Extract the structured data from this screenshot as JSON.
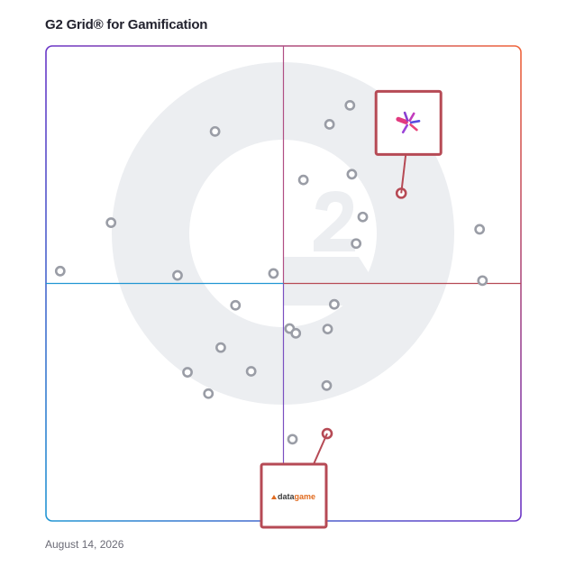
{
  "title": "G2 Grid® for Gamification",
  "date": "August 14, 2026",
  "colors": {
    "gradient_left": "#2196d3",
    "gradient_mid": "#6a35c7",
    "gradient_right": "#f0643a",
    "divider_top": "#b04e84",
    "divider_bottom": "#7a4fc1",
    "point": "#9a9da6",
    "highlight": "#b64a55",
    "watermark": "#eceef1"
  },
  "chart_data": {
    "type": "scatter",
    "title": "G2 Grid® for Gamification",
    "xlabel": "",
    "ylabel": "",
    "xlim": [
      0,
      1
    ],
    "ylim": [
      0,
      1
    ],
    "quadrant_split": {
      "x": 0.5,
      "y": 0.5
    },
    "grid": false,
    "legend": "none",
    "points": [
      {
        "x": 0.64,
        "y": 0.875,
        "highlight": false
      },
      {
        "x": 0.597,
        "y": 0.835,
        "highlight": false
      },
      {
        "x": 0.356,
        "y": 0.82,
        "highlight": false
      },
      {
        "x": 0.644,
        "y": 0.73,
        "highlight": false
      },
      {
        "x": 0.542,
        "y": 0.718,
        "highlight": false
      },
      {
        "x": 0.667,
        "y": 0.64,
        "highlight": false
      },
      {
        "x": 0.137,
        "y": 0.628,
        "highlight": false
      },
      {
        "x": 0.653,
        "y": 0.584,
        "highlight": false
      },
      {
        "x": 0.913,
        "y": 0.614,
        "highlight": false
      },
      {
        "x": 0.03,
        "y": 0.526,
        "highlight": false
      },
      {
        "x": 0.277,
        "y": 0.517,
        "highlight": false
      },
      {
        "x": 0.479,
        "y": 0.521,
        "highlight": false
      },
      {
        "x": 0.919,
        "y": 0.506,
        "highlight": false
      },
      {
        "x": 0.399,
        "y": 0.454,
        "highlight": false
      },
      {
        "x": 0.607,
        "y": 0.456,
        "highlight": false
      },
      {
        "x": 0.513,
        "y": 0.405,
        "highlight": false
      },
      {
        "x": 0.526,
        "y": 0.395,
        "highlight": false
      },
      {
        "x": 0.593,
        "y": 0.404,
        "highlight": false
      },
      {
        "x": 0.368,
        "y": 0.365,
        "highlight": false
      },
      {
        "x": 0.432,
        "y": 0.315,
        "highlight": false
      },
      {
        "x": 0.298,
        "y": 0.313,
        "highlight": false
      },
      {
        "x": 0.342,
        "y": 0.268,
        "highlight": false
      },
      {
        "x": 0.591,
        "y": 0.285,
        "highlight": false
      },
      {
        "x": 0.519,
        "y": 0.172,
        "highlight": false
      },
      {
        "x": 0.748,
        "y": 0.69,
        "highlight": true,
        "logo": "pinwheel-logo",
        "callout": "up"
      },
      {
        "x": 0.592,
        "y": 0.184,
        "highlight": true,
        "logo": "datagame",
        "callout": "down"
      }
    ],
    "logos": {
      "datagame": {
        "text_dark": "data",
        "text_accent": "game",
        "color_dark": "#3b3b3b",
        "color_accent": "#e06a1e"
      }
    }
  }
}
